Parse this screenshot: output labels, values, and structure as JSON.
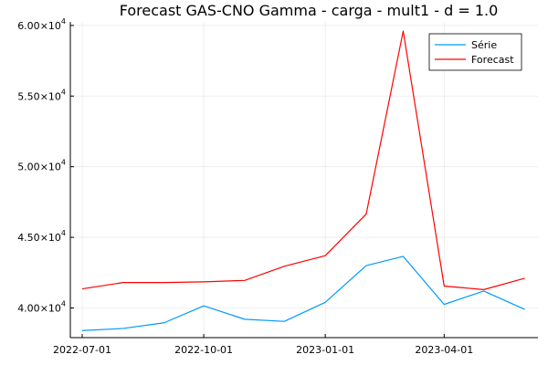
{
  "chart_data": {
    "type": "line",
    "title": "Forecast GAS-CNO Gamma - carga - mult1 - d = 1.0",
    "xlabel": "",
    "ylabel": "",
    "x": [
      "2022-07-01",
      "2022-08-01",
      "2022-09-01",
      "2022-10-01",
      "2022-11-01",
      "2022-12-01",
      "2023-01-01",
      "2023-02-01",
      "2023-03-01",
      "2023-04-01",
      "2023-05-01",
      "2023-06-01"
    ],
    "x_ticks": [
      "2022-07-01",
      "2022-10-01",
      "2023-01-01",
      "2023-04-01"
    ],
    "y_ticks": [
      {
        "value": 40000,
        "mantissa": "4.00",
        "exp": "4"
      },
      {
        "value": 45000,
        "mantissa": "4.50",
        "exp": "4"
      },
      {
        "value": 50000,
        "mantissa": "5.00",
        "exp": "4"
      },
      {
        "value": 55000,
        "mantissa": "5.50",
        "exp": "4"
      },
      {
        "value": 60000,
        "mantissa": "6.00",
        "exp": "4"
      }
    ],
    "ylim": [
      37900,
      60250
    ],
    "xlim": [
      "2022-06-22",
      "2023-06-11"
    ],
    "grid": true,
    "legend_position": "top-right",
    "series": [
      {
        "name": "Série",
        "color": "#009af9",
        "values": [
          38400,
          38550,
          38950,
          40150,
          39200,
          39050,
          40400,
          43000,
          43650,
          40250,
          41200,
          39900
        ]
      },
      {
        "name": "Forecast",
        "color": "#ff0000",
        "values": [
          41350,
          41800,
          41800,
          41850,
          41950,
          42950,
          43700,
          46650,
          59600,
          41550,
          41300,
          42100
        ]
      }
    ]
  }
}
